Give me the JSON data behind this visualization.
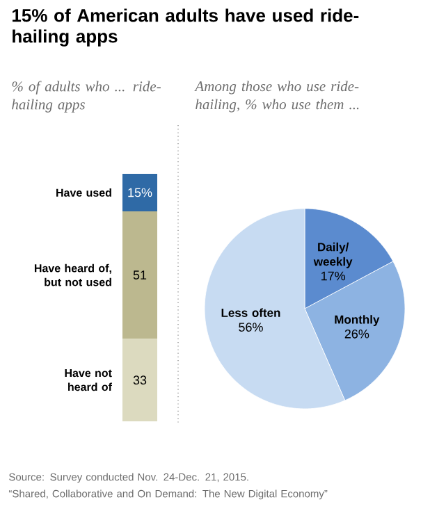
{
  "chart_data": [
    {
      "type": "bar",
      "title": "15% of American adults have used ride-hailing apps",
      "subtitle": "% of adults who ... ride-hailing apps",
      "categories": [
        null
      ],
      "stacked": true,
      "series": [
        {
          "name": "Have not heard of",
          "color": "#dcdabf",
          "values": [
            33
          ],
          "value_labels": [
            "33"
          ]
        },
        {
          "name": "Have heard of, but not used",
          "color": "#bcb88f",
          "values": [
            51
          ],
          "value_labels": [
            "51"
          ]
        },
        {
          "name": "Have used",
          "color": "#2f6aa6",
          "values": [
            15
          ],
          "value_labels": [
            "15%"
          ]
        }
      ]
    },
    {
      "type": "pie",
      "title": "Among those who use ride-hailing, % who use them ...",
      "categories": [
        "Daily/ weekly",
        "Monthly",
        "Less often"
      ],
      "values": [
        17,
        26,
        56
      ],
      "colors": [
        "#5b8bcf",
        "#8db3e2",
        "#c7dbf2"
      ],
      "value_labels": [
        "17%",
        "26%",
        "56%"
      ],
      "annotations": [
        "Source: Survey conducted Nov. 24-Dec. 21, 2015.",
        "“Shared, Collaborative and On Demand: The New Digital Economy”"
      ]
    }
  ]
}
